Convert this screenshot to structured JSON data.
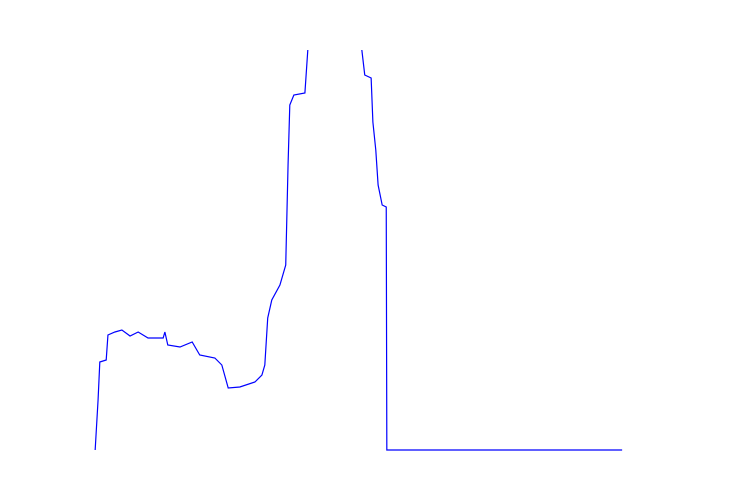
{
  "chart_data": {
    "type": "line",
    "x": [
      0.2,
      0.7,
      1.0,
      2.1,
      2.4,
      3.6,
      4.8,
      6.2,
      7.6,
      9.3,
      11.9,
      12.2,
      12.7,
      14.8,
      16.9,
      18.2,
      20.8,
      22.0,
      23.1,
      25.1,
      27.7,
      28.9,
      29.4,
      29.9,
      30.6,
      32.0,
      33.0,
      33.4,
      33.7,
      34.4,
      36.3,
      36.8,
      37.2,
      45.4,
      46.1,
      46.6,
      47.7,
      48.0,
      48.5,
      48.9,
      49.6,
      50.3,
      50.4,
      90.9
    ],
    "series": [
      {
        "color": "#0000ff",
        "values": [
          0,
          12.5,
          22,
          22.5,
          28.75,
          29.5,
          30,
          28.5,
          29.5,
          28,
          28,
          29.5,
          26.25,
          25.75,
          27,
          23.75,
          23,
          21.25,
          15.5,
          15.75,
          17,
          18.75,
          21.25,
          33,
          37.5,
          41.25,
          46.25,
          71.25,
          86.25,
          88.75,
          89.25,
          100,
          107.5,
          107.5,
          100,
          93.75,
          93,
          82,
          75,
          66.25,
          61.25,
          60.75,
          0,
          0
        ]
      }
    ],
    "xlim": [
      0,
      100
    ],
    "ylim": [
      0,
      100
    ]
  }
}
